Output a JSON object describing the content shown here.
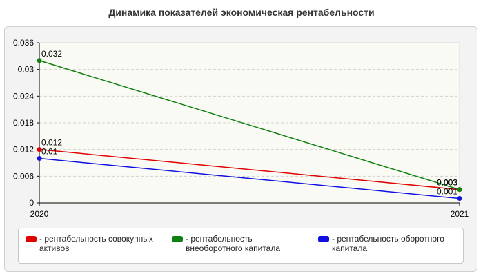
{
  "chart_data": {
    "type": "line",
    "title": "Динамика показателей экономическая рентабельности",
    "categories": [
      "2020",
      "2021"
    ],
    "ylim": [
      0,
      0.036
    ],
    "yticks": [
      "0",
      "0.006",
      "0.012",
      "0.018",
      "0.024",
      "0.03",
      "0.036"
    ],
    "grid": true,
    "legend_position": "bottom",
    "series": [
      {
        "name": "- рентабельность совокупных активов",
        "color": "#e00000",
        "values": [
          0.012,
          0.003
        ],
        "labels": [
          "0.012",
          "0.003"
        ]
      },
      {
        "name": "- рентабельность внеоборотного капитала",
        "color": "#108010",
        "values": [
          0.032,
          0.003
        ],
        "labels": [
          "0.032",
          "0.003"
        ]
      },
      {
        "name": "- рентабельность оборотного капитала",
        "color": "#1010e0",
        "values": [
          0.01,
          0.001
        ],
        "labels": [
          "0.01",
          "0.001"
        ]
      }
    ]
  }
}
